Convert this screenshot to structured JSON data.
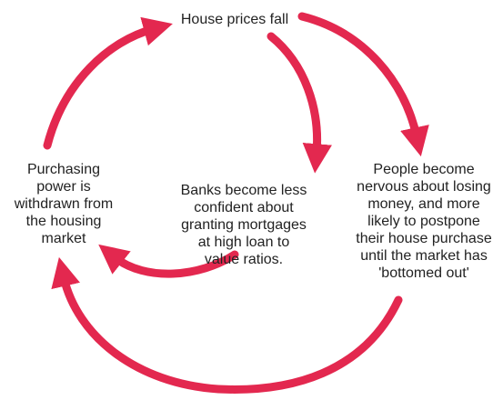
{
  "title": "House prices fall",
  "nodes": [
    {
      "lines": [
        "Purchasing",
        "power is",
        "withdrawn from",
        "the housing",
        "market"
      ]
    },
    {
      "lines": [
        "Banks become less",
        "confident about",
        "granting mortgages",
        "at high loan to",
        "value ratios."
      ]
    },
    {
      "lines": [
        "People become",
        "nervous about losing",
        "money, and more",
        "likely to postpone",
        "their house purchase",
        "until the market has",
        "'bottomed out'"
      ]
    }
  ]
}
